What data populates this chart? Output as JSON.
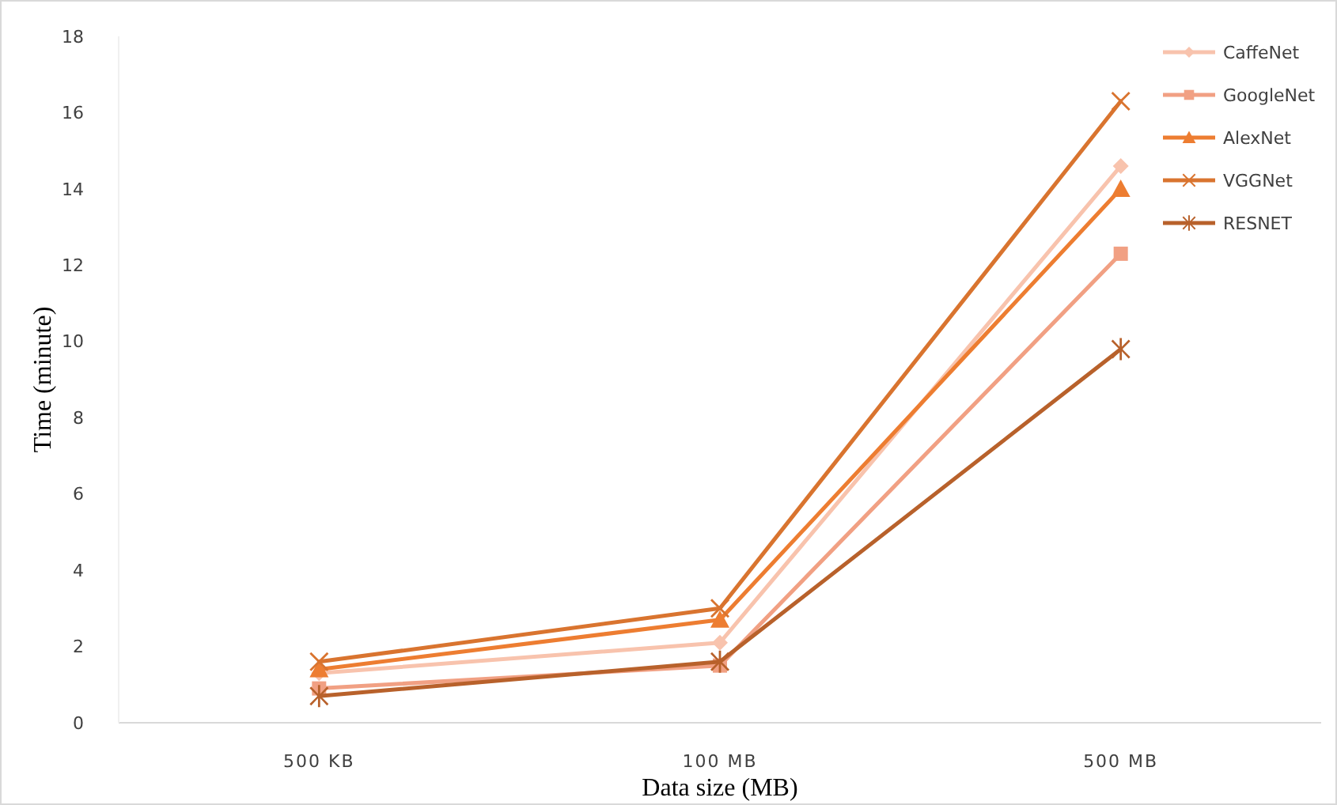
{
  "chart_data": {
    "type": "line",
    "xlabel": "Data size (MB)",
    "ylabel": "Time (minute)",
    "categories": [
      "500 KB",
      "100 MB",
      "500 MB"
    ],
    "ylim": [
      0,
      18
    ],
    "yticks": [
      0,
      2,
      4,
      6,
      8,
      10,
      12,
      14,
      16,
      18
    ],
    "legend": "top right",
    "series": [
      {
        "name": "CaffeNet",
        "color": "#f8c3ad",
        "marker": "diamond",
        "values": [
          1.3,
          2.1,
          14.6
        ]
      },
      {
        "name": "GoogleNet",
        "color": "#f1a083",
        "marker": "square",
        "values": [
          0.9,
          1.5,
          12.3
        ]
      },
      {
        "name": "AlexNet",
        "color": "#ed7d31",
        "marker": "triangle",
        "values": [
          1.4,
          2.7,
          14.0
        ]
      },
      {
        "name": "VGGNet",
        "color": "#d9742f",
        "marker": "cross",
        "values": [
          1.6,
          3.0,
          16.3
        ]
      },
      {
        "name": "RESNET",
        "color": "#b8612b",
        "marker": "star",
        "values": [
          0.7,
          1.6,
          9.8
        ]
      }
    ]
  }
}
